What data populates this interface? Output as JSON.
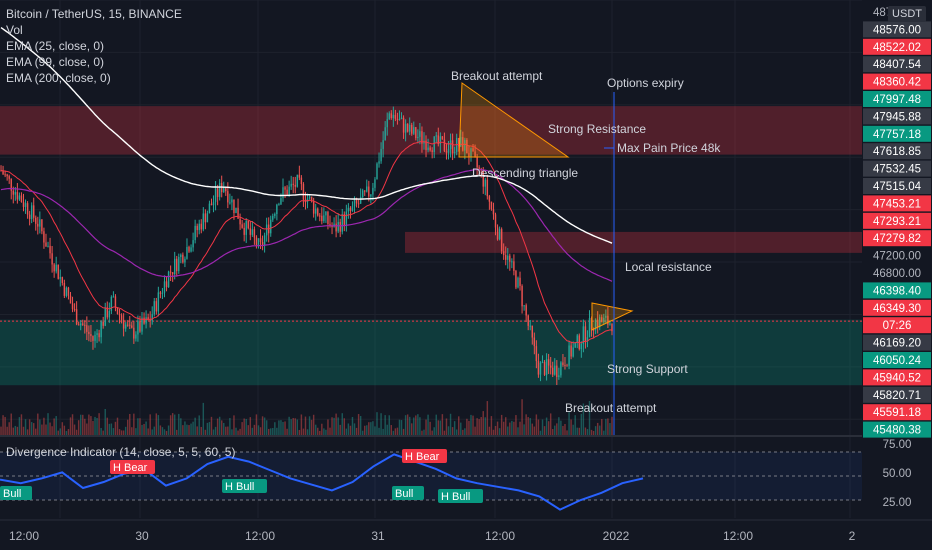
{
  "legend": {
    "symbol": "Bitcoin / TetherUS, 15, BINANCE",
    "vol": "Vol",
    "ema25": "EMA (25, close, 0)",
    "ema99": "EMA (99, close, 0)",
    "ema200": "EMA (200, close, 0)"
  },
  "currency_button": "USDT",
  "oscillator_title": "Divergence Indicator (14, close, 5, 5, 60, 5)",
  "chart_data": {
    "type": "candlestick",
    "price_axis": {
      "ylim": [
        45480,
        48800
      ],
      "labels": [
        {
          "value": "48763.63",
          "bg": "#131722"
        },
        {
          "value": "48576.00",
          "bg": "#363a45"
        },
        {
          "value": "48522.02",
          "bg": "#f23645"
        },
        {
          "value": "48407.54",
          "bg": "#363a45"
        },
        {
          "value": "48360.42",
          "bg": "#f23645"
        },
        {
          "value": "47997.48",
          "bg": "#089981"
        },
        {
          "value": "47945.88",
          "bg": "#363a45"
        },
        {
          "value": "47757.18",
          "bg": "#089981"
        },
        {
          "value": "47618.85",
          "bg": "#363a45"
        },
        {
          "value": "47532.45",
          "bg": "#363a45"
        },
        {
          "value": "47515.04",
          "bg": "#363a45"
        },
        {
          "value": "47453.21",
          "bg": "#f23645"
        },
        {
          "value": "47293.21",
          "bg": "#f23645"
        },
        {
          "value": "47279.82",
          "bg": "#f23645"
        },
        {
          "value": "47200.00",
          "bg": "#131722"
        },
        {
          "value": "46800.00",
          "bg": "#131722"
        },
        {
          "value": "46398.40",
          "bg": "#089981"
        },
        {
          "value": "46349.30",
          "bg": "#f23645"
        },
        {
          "value": "07:26",
          "bg": "#f23645"
        },
        {
          "value": "46169.20",
          "bg": "#363a45"
        },
        {
          "value": "46050.24",
          "bg": "#089981"
        },
        {
          "value": "45940.52",
          "bg": "#f23645"
        },
        {
          "value": "45820.71",
          "bg": "#363a45"
        },
        {
          "value": "45591.18",
          "bg": "#f23645"
        },
        {
          "value": "45480.38",
          "bg": "#089981"
        }
      ]
    },
    "x_tick_labels": [
      "12:00",
      "30",
      "12:00",
      "31",
      "12:00",
      "2022",
      "12:00",
      "2"
    ],
    "zones": [
      {
        "name": "strong-resistance",
        "from": 47620,
        "to": 47990,
        "color": "#f23645"
      },
      {
        "name": "local-resistance",
        "from": 46870,
        "to": 47030,
        "color": "#f23645"
      },
      {
        "name": "strong-support",
        "from": 45860,
        "to": 46360,
        "color": "#089981"
      }
    ],
    "annotations": [
      {
        "text": "Breakout attempt"
      },
      {
        "text": "Options expiry"
      },
      {
        "text": "Strong Resistance"
      },
      {
        "text": "Max Pain Price 48k"
      },
      {
        "text": "Descending triangle"
      },
      {
        "text": "Local resistance"
      },
      {
        "text": "Strong Support"
      },
      {
        "text": "Breakout attempt"
      }
    ],
    "close_path": [
      47500,
      47300,
      47100,
      46750,
      46400,
      46200,
      46500,
      46250,
      46350,
      46700,
      46900,
      47150,
      47400,
      47100,
      46900,
      47300,
      47400,
      47200,
      47050,
      47200,
      47350,
      47950,
      47800,
      47720,
      47680,
      47700,
      47450,
      46950,
      46600,
      46000,
      45980,
      46150,
      46350,
      46340
    ],
    "oscillator": {
      "ylim": [
        15,
        80
      ],
      "labels": [
        "75.00",
        "50.00",
        "25.00"
      ],
      "band": [
        30,
        70
      ],
      "values": [
        47,
        44,
        48,
        53,
        40,
        45,
        52,
        55,
        42,
        48,
        60,
        66,
        62,
        55,
        48,
        43,
        38,
        45,
        58,
        68,
        62,
        56,
        48,
        44,
        41,
        38,
        33,
        22,
        30,
        36,
        44,
        48
      ],
      "signals": [
        {
          "text": "H Bear",
          "kind": "bear"
        },
        {
          "text": "H Bull",
          "kind": "bull"
        },
        {
          "text": "Bull",
          "kind": "bull"
        },
        {
          "text": "H Bear",
          "kind": "bear"
        },
        {
          "text": "H Bull",
          "kind": "bull"
        },
        {
          "text": "Bull",
          "kind": "bull"
        }
      ]
    }
  }
}
